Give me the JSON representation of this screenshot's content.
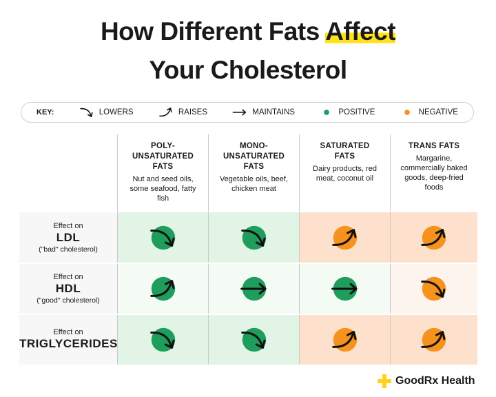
{
  "title": [
    "How Different Fats",
    "Affect",
    "Your Cholesterol"
  ],
  "key": {
    "label": "KEY:",
    "items": [
      {
        "label": "LOWERS",
        "arrow": "down"
      },
      {
        "label": "RAISES",
        "arrow": "up"
      },
      {
        "label": "MAINTAINS",
        "arrow": "flat"
      },
      {
        "label": "POSITIVE",
        "color": "#1f9d5c"
      },
      {
        "label": "NEGATIVE",
        "color": "#f6931e"
      }
    ]
  },
  "columns": [
    {
      "name": [
        "POLY-",
        "UNSATURATED",
        "FATS"
      ],
      "description": "Nut and seed oils, some seafood, fatty fish"
    },
    {
      "name": [
        "MONO-",
        "UNSATURATED",
        "FATS"
      ],
      "description": "Vegetable oils, beef, chicken meat"
    },
    {
      "name": [
        "SATURATED",
        "FATS"
      ],
      "description": "Dairy products, red meat, coconut oil"
    },
    {
      "name": [
        "TRANS FATS"
      ],
      "description": "Margarine, commercially baked goods, deep-fried foods"
    }
  ],
  "rows": [
    {
      "label": "Effect on",
      "name": "LDL",
      "note": "(\"bad\" cholesterol)",
      "cells": [
        {
          "effect": "LOWERS",
          "rating": "POSITIVE"
        },
        {
          "effect": "LOWERS",
          "rating": "POSITIVE"
        },
        {
          "effect": "RAISES",
          "rating": "NEGATIVE"
        },
        {
          "effect": "RAISES",
          "rating": "NEGATIVE"
        }
      ]
    },
    {
      "label": "Effect on",
      "name": "HDL",
      "note": "(\"good\" cholesterol)",
      "cells": [
        {
          "effect": "RAISES",
          "rating": "POSITIVE"
        },
        {
          "effect": "MAINTAINS",
          "rating": "POSITIVE"
        },
        {
          "effect": "MAINTAINS",
          "rating": "POSITIVE"
        },
        {
          "effect": "LOWERS",
          "rating": "NEGATIVE"
        }
      ]
    },
    {
      "label": "Effect on",
      "name": "TRIGLYCERIDES",
      "cells": [
        {
          "effect": "LOWERS",
          "rating": "POSITIVE"
        },
        {
          "effect": "LOWERS",
          "rating": "POSITIVE"
        },
        {
          "effect": "RAISES",
          "rating": "NEGATIVE"
        },
        {
          "effect": "RAISES",
          "rating": "NEGATIVE"
        }
      ]
    }
  ],
  "footer": {
    "brand": "GoodRx Health"
  }
}
